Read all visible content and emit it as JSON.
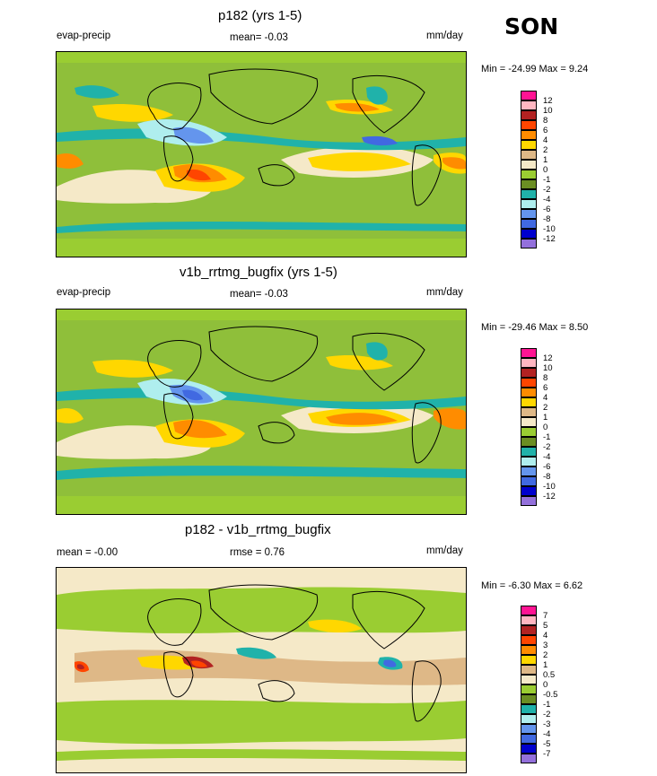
{
  "season": "SON",
  "panels": [
    {
      "title": "p182 (yrs 1-5)",
      "left_label": "evap-precip",
      "center_label": "mean=  -0.03",
      "right_label": "mm/day",
      "stats": "Min = -24.99 Max =   9.24",
      "legend_levels": [
        "12",
        "10",
        "8",
        "6",
        "4",
        "2",
        "1",
        "0",
        "-1",
        "-2",
        "-4",
        "-6",
        "-8",
        "-10",
        "-12"
      ]
    },
    {
      "title": "v1b_rrtmg_bugfix (yrs 1-5)",
      "left_label": "evap-precip",
      "center_label": "mean=  -0.03",
      "right_label": "mm/day",
      "stats": "Min = -29.46 Max =   8.50",
      "legend_levels": [
        "12",
        "10",
        "8",
        "6",
        "4",
        "2",
        "1",
        "0",
        "-1",
        "-2",
        "-4",
        "-6",
        "-8",
        "-10",
        "-12"
      ]
    },
    {
      "title": "p182 - v1b_rrtmg_bugfix",
      "left_label": "mean =  -0.00",
      "center_label": "rmse =   0.76",
      "right_label": "mm/day",
      "stats": "Min =  -6.30 Max =   6.62",
      "legend_levels": [
        "7",
        "5",
        "4",
        "3",
        "2",
        "1",
        "0.5",
        "0",
        "-0.5",
        "-1",
        "-2",
        "-3",
        "-4",
        "-5",
        "-7"
      ]
    }
  ],
  "colors": {
    "legend": [
      "#ff1493",
      "#ffb6c1",
      "#b22222",
      "#ff4500",
      "#ff8c00",
      "#ffd700",
      "#deb887",
      "#f5e9c8",
      "#9acd32",
      "#6b8e23",
      "#20b2aa",
      "#afeeee",
      "#6495ed",
      "#4169e1",
      "#0000cd",
      "#9370db"
    ],
    "ocean_mean": "#8fbf3a",
    "ocean_diff": "#f5e9c8"
  }
}
